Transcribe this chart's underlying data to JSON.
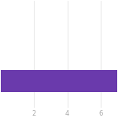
{
  "bar_value": 7,
  "bar_color": "#6a3aac",
  "bar_y": 1,
  "bar_height": 0.8,
  "xlim": [
    0,
    7
  ],
  "ylim": [
    0,
    4
  ],
  "xticks": [
    2,
    4,
    6
  ],
  "xtick_labels": [
    "2",
    "4",
    "6"
  ],
  "background_color": "#ffffff",
  "tick_color": "#aaaaaa",
  "tick_fontsize": 6,
  "grid_color": "#dddddd"
}
